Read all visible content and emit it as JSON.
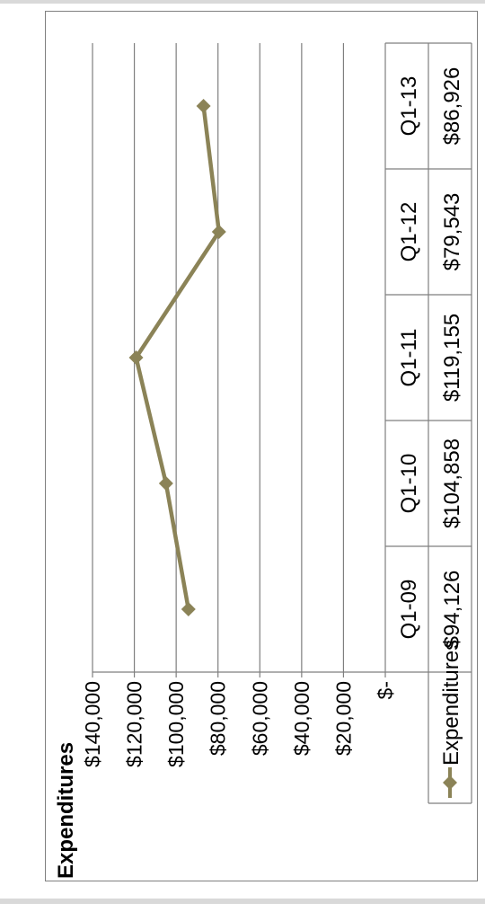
{
  "chart_data": {
    "type": "line",
    "title": "Expenditures",
    "categories": [
      "Q1-09",
      "Q1-10",
      "Q1-11",
      "Q1-12",
      "Q1-13"
    ],
    "series": [
      {
        "name": "Expenditures",
        "values": [
          94126,
          104858,
          119155,
          79543,
          86926
        ]
      }
    ],
    "value_labels": [
      "$94,126",
      "$104,858",
      "$119,155",
      "$79,543",
      "$86,926"
    ],
    "ylim": [
      0,
      140000
    ],
    "yticks": [
      0,
      20000,
      40000,
      60000,
      80000,
      100000,
      120000,
      140000
    ],
    "ytick_labels": [
      "$-",
      "$20,000",
      "$40,000",
      "$60,000",
      "$80,000",
      "$100,000",
      "$120,000",
      "$140,000"
    ],
    "grid": true,
    "data_table": true,
    "orientation": "rotated 90 degrees counter-clockwise",
    "colors": {
      "series": "#8b8357",
      "grid": "#7f7f7f",
      "axis": "#7f7f7f",
      "text": "#000000"
    }
  }
}
